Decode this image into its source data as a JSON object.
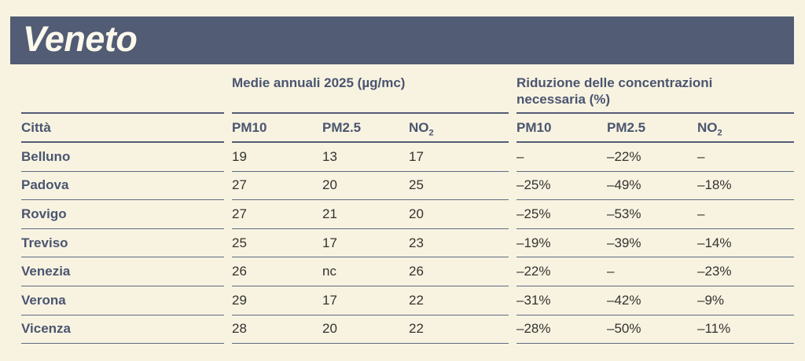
{
  "title": "Veneto",
  "colors": {
    "background": "#f8f3e1",
    "header_bar": "#525c74",
    "heading_text": "#4a556f",
    "body_text": "#33322e",
    "line": "#5e6a81"
  },
  "table": {
    "group1_title": "Medie annuali 2025 (µg/mc)",
    "group2_title_line1": "Riduzione delle concentrazioni",
    "group2_title_line2": "necessaria (%)",
    "columns": {
      "city": "Città",
      "pm10": "PM10",
      "pm25": "PM2.5",
      "no2_base": "NO",
      "no2_sub": "2"
    },
    "rows": [
      {
        "city": "Belluno",
        "avg_pm10": "19",
        "avg_pm25": "13",
        "avg_no2": "17",
        "red_pm10": "–",
        "red_pm25": "–22%",
        "red_no2": "–"
      },
      {
        "city": "Padova",
        "avg_pm10": "27",
        "avg_pm25": "20",
        "avg_no2": "25",
        "red_pm10": "–25%",
        "red_pm25": "–49%",
        "red_no2": "–18%"
      },
      {
        "city": "Rovigo",
        "avg_pm10": "27",
        "avg_pm25": "21",
        "avg_no2": "20",
        "red_pm10": "–25%",
        "red_pm25": "–53%",
        "red_no2": "–"
      },
      {
        "city": "Treviso",
        "avg_pm10": "25",
        "avg_pm25": "17",
        "avg_no2": "23",
        "red_pm10": "–19%",
        "red_pm25": "–39%",
        "red_no2": "–14%"
      },
      {
        "city": "Venezia",
        "avg_pm10": "26",
        "avg_pm25": "nc",
        "avg_no2": "26",
        "red_pm10": "–22%",
        "red_pm25": "–",
        "red_no2": "–23%"
      },
      {
        "city": "Verona",
        "avg_pm10": "29",
        "avg_pm25": "17",
        "avg_no2": "22",
        "red_pm10": "–31%",
        "red_pm25": "–42%",
        "red_no2": "–9%"
      },
      {
        "city": "Vicenza",
        "avg_pm10": "28",
        "avg_pm25": "20",
        "avg_no2": "22",
        "red_pm10": "–28%",
        "red_pm25": "–50%",
        "red_no2": "–11%"
      }
    ]
  }
}
